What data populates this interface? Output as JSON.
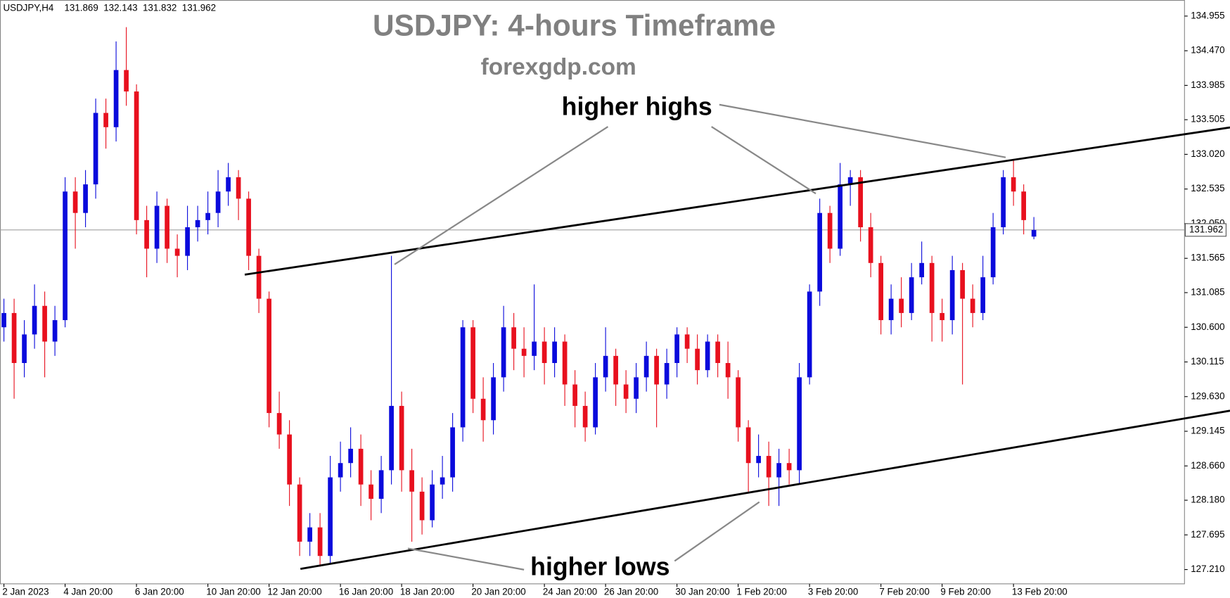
{
  "chart_data": {
    "type": "candlestick",
    "symbol_info": "USDJPY,H4",
    "title": "USDJPY: 4-hours Timeframe",
    "subtitle": "forexgdp.com",
    "annotations": [
      "higher highs",
      "higher lows"
    ],
    "up_color": "#0a0adc",
    "down_color": "#e8101e",
    "categories": [
      "2 Jan 2023",
      null,
      null,
      null,
      null,
      null,
      "4 Jan 20:00",
      null,
      null,
      null,
      null,
      null,
      null,
      "6 Jan 20:00",
      null,
      null,
      null,
      null,
      null,
      null,
      "10 Jan 20:00",
      null,
      null,
      null,
      null,
      null,
      "12 Jan 20:00",
      null,
      null,
      null,
      null,
      null,
      null,
      "16 Jan 20:00",
      null,
      null,
      null,
      null,
      null,
      "18 Jan 20:00",
      null,
      null,
      null,
      null,
      null,
      null,
      "20 Jan 20:00",
      null,
      null,
      null,
      null,
      null,
      null,
      "24 Jan 20:00",
      null,
      null,
      null,
      null,
      null,
      "26 Jan 20:00",
      null,
      null,
      null,
      null,
      null,
      null,
      "30 Jan 20:00",
      null,
      null,
      null,
      null,
      null,
      "1 Feb 20:00",
      null,
      null,
      null,
      null,
      null,
      null,
      "3 Feb 20:00",
      null,
      null,
      null,
      null,
      null,
      null,
      "7 Feb 20:00",
      null,
      null,
      null,
      null,
      null,
      "9 Feb 20:00",
      null,
      null,
      null,
      null,
      null,
      null,
      "13 Feb 20:00",
      null,
      null
    ],
    "open": [
      130.6,
      130.8,
      130.1,
      130.5,
      130.9,
      130.4,
      130.7,
      132.5,
      132.2,
      132.6,
      133.6,
      133.4,
      134.2,
      133.9,
      132.1,
      131.7,
      132.3,
      131.7,
      131.6,
      132.0,
      132.1,
      132.2,
      132.5,
      132.7,
      132.4,
      131.6,
      131.0,
      129.4,
      129.1,
      128.4,
      127.6,
      127.8,
      127.4,
      128.5,
      128.7,
      128.9,
      128.4,
      128.2,
      128.6,
      129.5,
      128.6,
      128.3,
      127.9,
      128.4,
      128.5,
      129.2,
      130.6,
      129.6,
      129.3,
      129.9,
      130.6,
      130.3,
      130.2,
      130.4,
      130.1,
      130.4,
      129.8,
      129.5,
      129.2,
      129.9,
      130.2,
      129.8,
      129.6,
      129.9,
      130.2,
      129.8,
      130.1,
      130.5,
      130.3,
      130.0,
      130.4,
      130.1,
      129.9,
      129.2,
      128.7,
      128.8,
      128.5,
      128.7,
      128.6,
      129.9,
      131.1,
      132.2,
      131.7,
      132.6,
      132.7,
      132.0,
      131.5,
      130.7,
      131.0,
      130.8,
      131.3,
      131.5,
      130.8,
      130.7,
      131.4,
      131.0,
      130.8,
      131.3,
      132.0,
      132.7,
      132.5,
      131.869
    ],
    "high": [
      131.0,
      131.0,
      130.7,
      131.2,
      131.1,
      130.9,
      132.7,
      132.7,
      132.8,
      133.8,
      133.8,
      134.6,
      134.8,
      134.0,
      132.3,
      132.5,
      132.4,
      131.9,
      132.3,
      132.3,
      132.5,
      132.8,
      132.9,
      132.8,
      132.5,
      131.7,
      131.1,
      129.7,
      129.3,
      128.5,
      128.0,
      128.0,
      128.8,
      129.0,
      129.2,
      129.1,
      128.6,
      128.8,
      131.6,
      129.7,
      128.9,
      128.5,
      128.6,
      128.8,
      129.4,
      130.7,
      130.7,
      129.9,
      130.1,
      130.9,
      130.8,
      130.6,
      131.2,
      130.6,
      130.6,
      130.5,
      130.0,
      129.7,
      130.1,
      130.6,
      130.3,
      130.0,
      130.1,
      130.4,
      130.3,
      130.3,
      130.6,
      130.6,
      130.5,
      130.5,
      130.5,
      130.4,
      130.0,
      129.3,
      129.1,
      129.0,
      128.9,
      128.9,
      130.1,
      131.2,
      132.4,
      132.3,
      132.9,
      132.8,
      132.8,
      132.2,
      131.6,
      131.2,
      131.3,
      131.5,
      131.8,
      131.6,
      131.0,
      131.6,
      131.5,
      131.2,
      131.6,
      132.2,
      132.8,
      132.95,
      132.6,
      132.143
    ],
    "low": [
      130.4,
      129.6,
      129.9,
      130.3,
      129.9,
      130.2,
      130.6,
      131.7,
      132.0,
      132.4,
      133.1,
      133.2,
      133.7,
      131.9,
      131.3,
      131.5,
      131.5,
      131.3,
      131.4,
      131.8,
      131.9,
      132.0,
      132.3,
      132.1,
      131.4,
      130.8,
      129.2,
      128.9,
      128.1,
      127.4,
      127.4,
      127.25,
      127.3,
      128.3,
      128.5,
      128.1,
      127.9,
      128.0,
      128.4,
      128.3,
      127.6,
      127.7,
      127.8,
      128.2,
      128.3,
      129.0,
      129.4,
      129.0,
      129.1,
      129.7,
      130.0,
      129.9,
      130.0,
      129.8,
      129.9,
      129.5,
      129.2,
      129.0,
      129.1,
      129.7,
      129.5,
      129.4,
      129.4,
      129.7,
      129.2,
      129.6,
      129.9,
      130.1,
      129.8,
      129.9,
      129.9,
      129.6,
      129.0,
      128.3,
      128.5,
      128.1,
      128.1,
      128.4,
      128.4,
      129.8,
      130.9,
      131.5,
      131.6,
      132.3,
      131.8,
      131.3,
      130.5,
      130.5,
      130.6,
      130.7,
      131.2,
      130.4,
      130.4,
      130.5,
      129.8,
      130.6,
      130.7,
      131.2,
      131.9,
      132.3,
      131.9,
      131.832
    ],
    "close": [
      130.8,
      130.1,
      130.5,
      130.9,
      130.4,
      130.7,
      132.5,
      132.2,
      132.6,
      133.6,
      133.4,
      134.2,
      133.9,
      132.1,
      131.7,
      132.3,
      131.7,
      131.6,
      132.0,
      132.1,
      132.2,
      132.5,
      132.7,
      132.4,
      131.6,
      131.0,
      129.4,
      129.1,
      128.4,
      127.6,
      127.8,
      127.4,
      128.5,
      128.7,
      128.9,
      128.4,
      128.2,
      128.6,
      129.5,
      128.6,
      128.3,
      127.9,
      128.4,
      128.5,
      129.2,
      130.6,
      129.6,
      129.3,
      129.9,
      130.6,
      130.3,
      130.2,
      130.4,
      130.1,
      130.4,
      129.8,
      129.5,
      129.2,
      129.9,
      130.2,
      129.8,
      129.6,
      129.9,
      130.2,
      129.8,
      130.1,
      130.5,
      130.3,
      130.0,
      130.4,
      130.1,
      129.9,
      129.2,
      128.7,
      128.8,
      128.5,
      128.7,
      128.6,
      129.9,
      131.1,
      132.2,
      131.7,
      132.6,
      132.7,
      132.0,
      131.5,
      130.7,
      131.0,
      130.8,
      131.3,
      131.5,
      130.8,
      130.7,
      131.4,
      131.0,
      130.8,
      131.3,
      132.0,
      132.7,
      132.5,
      132.1,
      131.962
    ],
    "last_price": 131.962,
    "ylim": [
      127.01,
      135.18
    ],
    "yticks": [
      134.955,
      {
        "value": 134.47,
        "label": "134.470"
      },
      133.985,
      133.505,
      {
        "value": 133.02,
        "label": "133.020"
      },
      132.535,
      {
        "value": 132.05,
        "label": "132.050"
      },
      131.565,
      131.085,
      {
        "value": 130.6,
        "label": "130.600"
      },
      130.115,
      {
        "value": 129.63,
        "label": "129.630"
      },
      129.145,
      {
        "value": 128.66,
        "label": "128.660"
      },
      {
        "value": 128.18,
        "label": "128.180"
      },
      127.695,
      {
        "value": 127.21,
        "label": "127.210"
      }
    ]
  }
}
